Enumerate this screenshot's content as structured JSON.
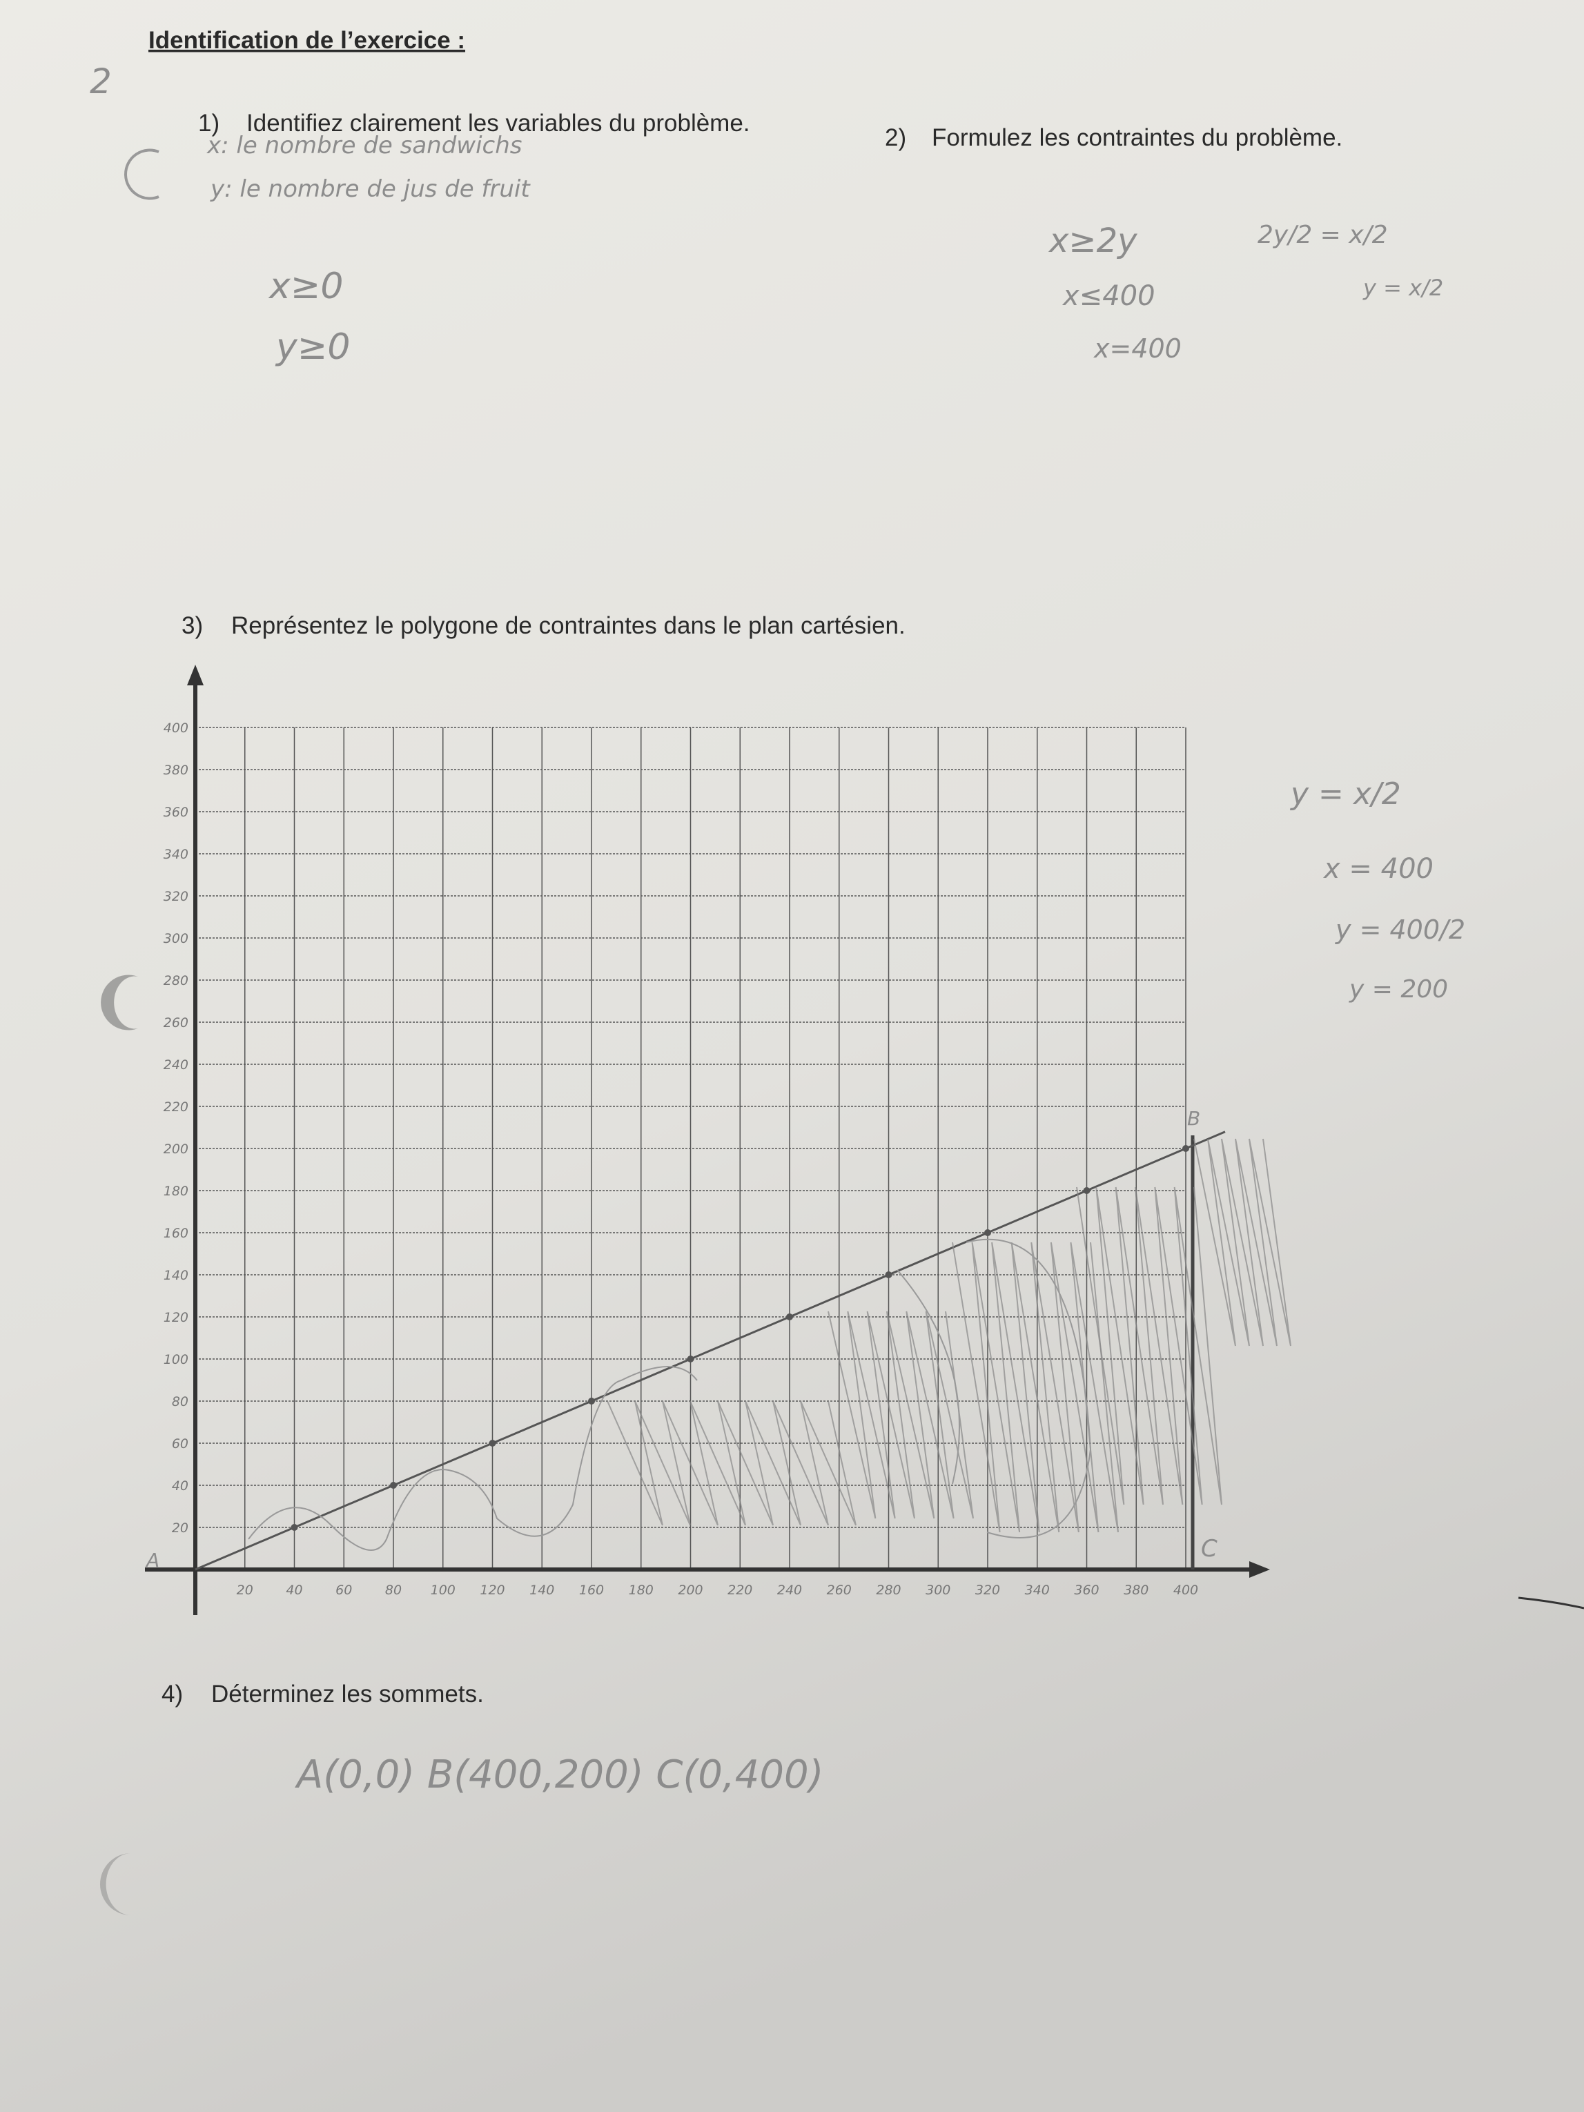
{
  "header": {
    "title": "Identification de l’exercice :",
    "page_number": "2"
  },
  "questions": [
    {
      "number": "1)",
      "text": "Identifiez clairement les variables du problème."
    },
    {
      "number": "2)",
      "text": "Formulez les contraintes du problème."
    },
    {
      "number": "3)",
      "text": "Représentez le polygone de contraintes dans le plan cartésien."
    },
    {
      "number": "4)",
      "text": "Déterminez les sommets."
    }
  ],
  "answers": {
    "variables": [
      "x: le nombre de sandwichs",
      "y: le nombre de jus de fruit"
    ],
    "non_negativity": [
      "x≥0",
      "y≥0"
    ],
    "constraints": [
      "x≥2y",
      "x≤400",
      "x=400"
    ],
    "working": [
      "2y/2 = x/2",
      "y = x/2"
    ],
    "side_notes": [
      "y = x/2",
      "x = 400",
      "y = 400/2",
      "y = 200"
    ],
    "vertices": "A(0,0)   B(400,200)   C(0,400)"
  },
  "graph": {
    "x_labels": [
      "20",
      "40",
      "60",
      "80",
      "100",
      "120",
      "140",
      "160",
      "180",
      "200",
      "220",
      "240",
      "260",
      "280",
      "300",
      "320",
      "340",
      "360",
      "380",
      "400"
    ],
    "y_labels": [
      "400",
      "380",
      "360",
      "340",
      "320",
      "300",
      "280",
      "260",
      "240",
      "220",
      "200",
      "180",
      "160",
      "140",
      "120",
      "100",
      "80",
      "60",
      "40",
      "20"
    ],
    "point_labels": [
      "A",
      "B",
      "C"
    ]
  }
}
